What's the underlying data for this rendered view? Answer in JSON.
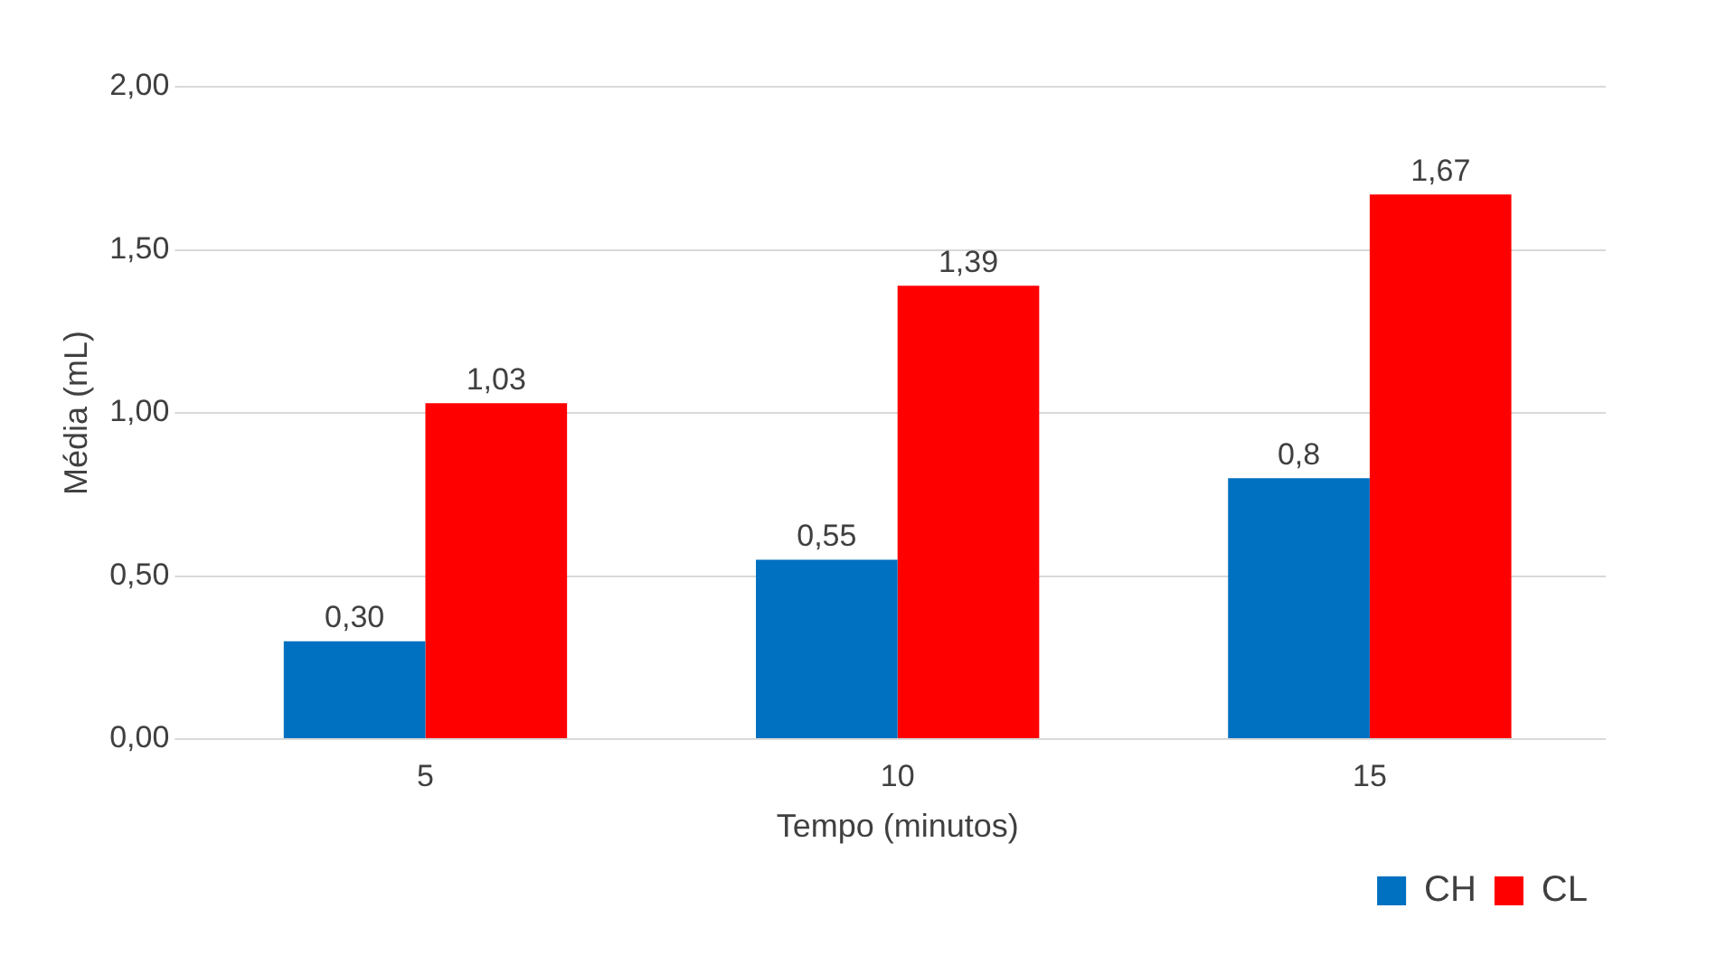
{
  "chart_data": {
    "type": "bar",
    "xlabel": "Tempo (minutos)",
    "ylabel": "Média (mL)",
    "categories": [
      "5",
      "10",
      "15"
    ],
    "series": [
      {
        "name": "CH",
        "color": "#0070c0",
        "values": [
          0.3,
          0.55,
          0.8
        ],
        "value_labels": [
          "0,30",
          "0,55",
          "0,8"
        ]
      },
      {
        "name": "CL",
        "color": "#ff0000",
        "values": [
          1.03,
          1.39,
          1.67
        ],
        "value_labels": [
          "1,03",
          "1,39",
          "1,67"
        ]
      }
    ],
    "ylim": [
      0,
      2
    ],
    "yticks": [
      {
        "value": 0,
        "label": "0,00"
      },
      {
        "value": 0.5,
        "label": "0,50"
      },
      {
        "value": 1,
        "label": "1,00"
      },
      {
        "value": 1.5,
        "label": "1,50"
      },
      {
        "value": 2,
        "label": "2,00"
      }
    ],
    "grid": "y",
    "legend": "bottom right"
  }
}
